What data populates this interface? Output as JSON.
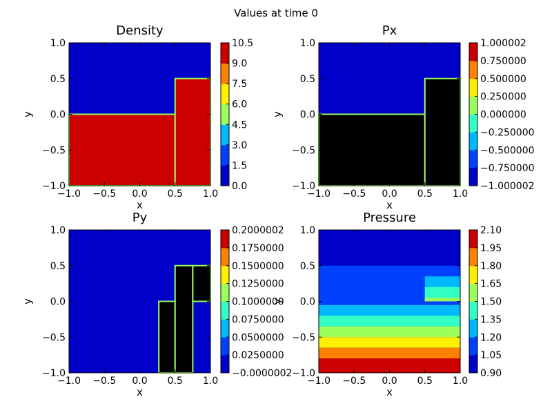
{
  "figure": {
    "suptitle": "Values at time 0"
  },
  "chart_data": [
    {
      "type": "heatmap",
      "title": "Density",
      "xlabel": "x",
      "ylabel": "y",
      "xlim": [
        -1.0,
        1.0
      ],
      "ylim": [
        -1.0,
        1.0
      ],
      "xticks": [
        "−1.0",
        "−0.5",
        "0.0",
        "0.5",
        "1.0"
      ],
      "yticks": [
        "−1.0",
        "−0.5",
        "0.0",
        "0.5",
        "1.0"
      ],
      "colorbar": {
        "levels": [
          "0.0",
          "1.5",
          "3.0",
          "4.5",
          "6.0",
          "7.5",
          "9.0",
          "10.5"
        ]
      },
      "regions": [
        {
          "x": [
            -1.0,
            0.5
          ],
          "y": [
            -1.0,
            0.0
          ],
          "level": 7
        },
        {
          "x": [
            0.5,
            1.0
          ],
          "y": [
            -1.0,
            0.5
          ],
          "level": 7
        }
      ]
    },
    {
      "type": "heatmap",
      "title": "Px",
      "xlabel": "x",
      "ylabel": "y",
      "xlim": [
        -1.0,
        1.0
      ],
      "ylim": [
        -1.0,
        1.0
      ],
      "xticks": [
        "−1.0",
        "−0.5",
        "0.0",
        "0.5",
        "1.0"
      ],
      "yticks": [
        "−1.0",
        "−0.5",
        "0.0",
        "0.5",
        "1.0"
      ],
      "colorbar": {
        "levels": [
          "−1.000002",
          "−0.750000",
          "−0.500000",
          "−0.250000",
          "0.000000",
          "0.250000",
          "0.500000",
          "0.750000",
          "1.000002"
        ]
      },
      "regions": [
        {
          "x": [
            -1.0,
            0.5
          ],
          "y": [
            -1.0,
            0.0
          ],
          "level": 8
        },
        {
          "x": [
            0.5,
            1.0
          ],
          "y": [
            -1.0,
            0.5
          ],
          "level": 8
        }
      ]
    },
    {
      "type": "heatmap",
      "title": "Py",
      "xlabel": "x",
      "ylabel": "y",
      "xlim": [
        -1.0,
        1.0
      ],
      "ylim": [
        -1.0,
        1.0
      ],
      "xticks": [
        "−1.0",
        "−0.5",
        "0.0",
        "0.5",
        "1.0"
      ],
      "yticks": [
        "−1.0",
        "−0.5",
        "0.0",
        "0.5",
        "1.0"
      ],
      "colorbar": {
        "levels": [
          "−0.0000002",
          "0.0250000",
          "0.0500000",
          "0.0750000",
          "0.1000000",
          "0.1250000",
          "0.1500000",
          "0.1750000",
          "0.2000002"
        ]
      },
      "regions": [
        {
          "x": [
            0.27,
            0.5
          ],
          "y": [
            -1.0,
            0.0
          ],
          "level": 8
        },
        {
          "x": [
            0.5,
            0.75
          ],
          "y": [
            -1.0,
            0.5
          ],
          "level": 8
        },
        {
          "x": [
            0.75,
            1.0
          ],
          "y": [
            0.0,
            0.5
          ],
          "level": 8
        }
      ]
    },
    {
      "type": "heatmap",
      "title": "Pressure",
      "xlabel": "x",
      "ylabel": "y",
      "xlim": [
        -1.0,
        1.0
      ],
      "ylim": [
        -1.0,
        1.0
      ],
      "xticks": [
        "−1.0",
        "−0.5",
        "0.0",
        "0.5",
        "1.0"
      ],
      "yticks": [
        "−1.0",
        "−0.5",
        "0.0",
        "0.5",
        "1.0"
      ],
      "colorbar": {
        "levels": [
          "0.90",
          "1.05",
          "1.20",
          "1.35",
          "1.50",
          "1.65",
          "1.80",
          "1.95",
          "2.10"
        ]
      },
      "regions": [
        {
          "x": [
            -1.0,
            1.0
          ],
          "y": [
            -0.05,
            0.5
          ],
          "level": 1
        },
        {
          "x": [
            -1.0,
            1.0
          ],
          "y": [
            -0.2,
            -0.05
          ],
          "level": 2
        },
        {
          "x": [
            -1.0,
            1.0
          ],
          "y": [
            -0.35,
            -0.2
          ],
          "level": 3
        },
        {
          "x": [
            -1.0,
            1.0
          ],
          "y": [
            -0.5,
            -0.35
          ],
          "level": 4
        },
        {
          "x": [
            -1.0,
            1.0
          ],
          "y": [
            -0.65,
            -0.5
          ],
          "level": 5
        },
        {
          "x": [
            -1.0,
            1.0
          ],
          "y": [
            -0.8,
            -0.65
          ],
          "level": 6
        },
        {
          "x": [
            -1.0,
            1.0
          ],
          "y": [
            -1.0,
            -0.8
          ],
          "level": 7
        },
        {
          "x": [
            0.5,
            1.0
          ],
          "y": [
            0.0,
            0.35
          ],
          "level": 2
        },
        {
          "x": [
            0.5,
            1.0
          ],
          "y": [
            0.0,
            0.2
          ],
          "level": 3
        },
        {
          "x": [
            0.5,
            1.0
          ],
          "y": [
            0.0,
            0.05
          ],
          "level": 4
        }
      ]
    }
  ],
  "colormap": [
    "#0000c8",
    "#0040ff",
    "#00b8ff",
    "#33ffc4",
    "#9cff5b",
    "#ffef00",
    "#ff8000",
    "#cc0000"
  ]
}
